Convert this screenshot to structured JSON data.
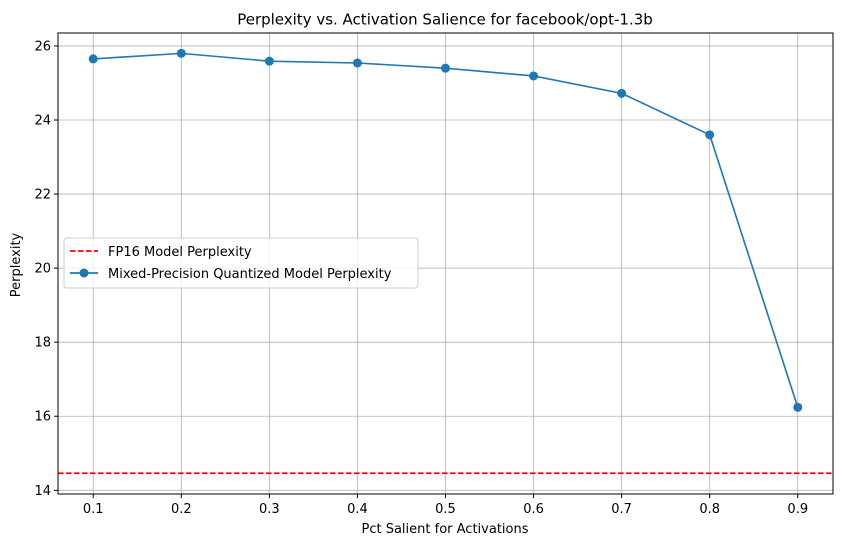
{
  "chart_data": {
    "type": "line",
    "title": "Perplexity vs. Activation Salience for facebook/opt-1.3b",
    "xlabel": "Pct Salient for Activations",
    "ylabel": "Perplexity",
    "xlim": [
      0.06,
      0.94
    ],
    "ylim": [
      13.9,
      26.35
    ],
    "xticks": [
      0.1,
      0.2,
      0.3,
      0.4,
      0.5,
      0.6,
      0.7,
      0.8,
      0.9
    ],
    "xtick_labels": [
      "0.1",
      "0.2",
      "0.3",
      "0.4",
      "0.5",
      "0.6",
      "0.7",
      "0.8",
      "0.9"
    ],
    "yticks": [
      14,
      16,
      18,
      20,
      22,
      24,
      26
    ],
    "ytick_labels": [
      "14",
      "16",
      "18",
      "20",
      "22",
      "24",
      "26"
    ],
    "grid": true,
    "legend_position": "center-left",
    "reference_line": {
      "name": "FP16 Model Perplexity",
      "y": 14.46,
      "color": "#ff0000",
      "style": "dashed"
    },
    "series": [
      {
        "name": "Mixed-Precision Quantized Model Perplexity",
        "color": "#1f77b4",
        "marker": "circle",
        "x": [
          0.1,
          0.2,
          0.3,
          0.4,
          0.5,
          0.6,
          0.7,
          0.8,
          0.9
        ],
        "values": [
          25.65,
          25.8,
          25.59,
          25.54,
          25.4,
          25.19,
          24.72,
          23.6,
          16.24
        ]
      }
    ]
  }
}
